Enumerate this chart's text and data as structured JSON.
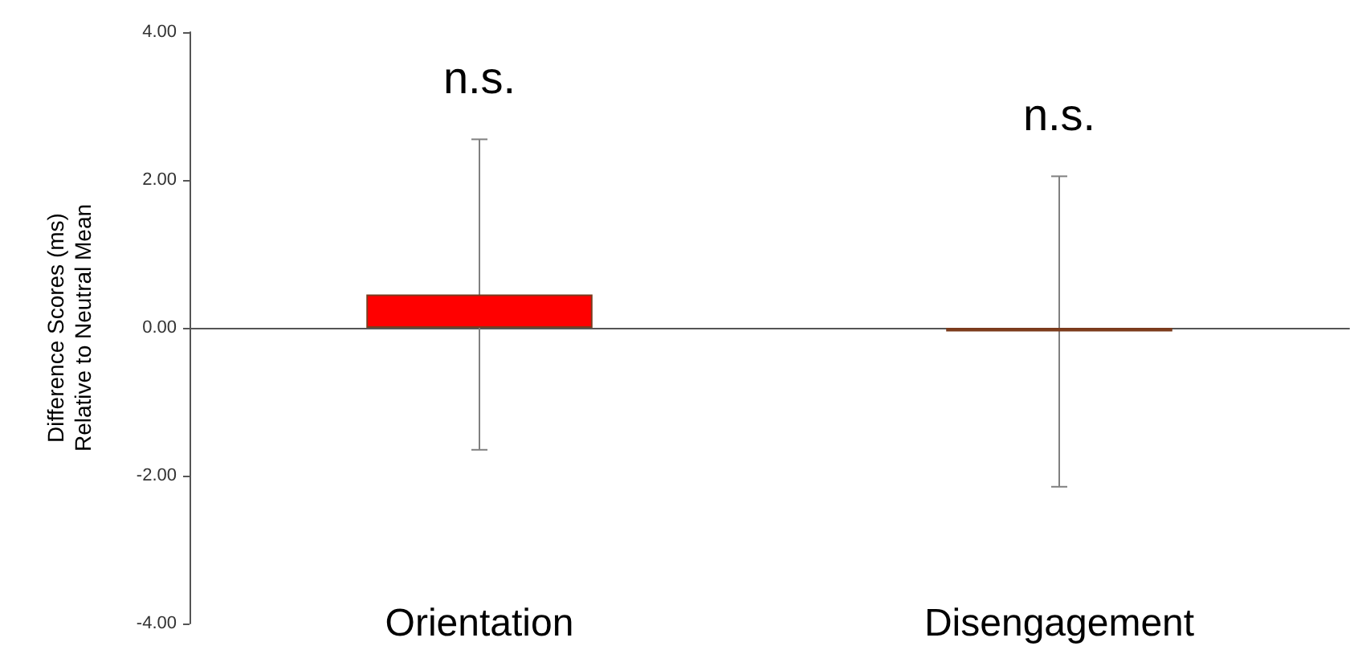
{
  "chart_data": {
    "type": "bar",
    "ylabel": "Difference Scores (ms)\nRelative to Neutral Mean",
    "categories": [
      "Orientation",
      "Disengagement"
    ],
    "values": [
      0.45,
      -0.05
    ],
    "colors": [
      "#ff0000",
      "#8b4513"
    ],
    "errors": [
      2.1,
      2.1
    ],
    "ylim": [
      -4,
      4
    ],
    "yticks": [
      {
        "value": -4,
        "label": "-4.00"
      },
      {
        "value": -2,
        "label": "-2.00"
      },
      {
        "value": 0,
        "label": "0.00"
      },
      {
        "value": 2,
        "label": "2.00"
      },
      {
        "value": 4,
        "label": "4.00"
      }
    ],
    "annotations": [
      "n.s.",
      "n.s."
    ]
  }
}
